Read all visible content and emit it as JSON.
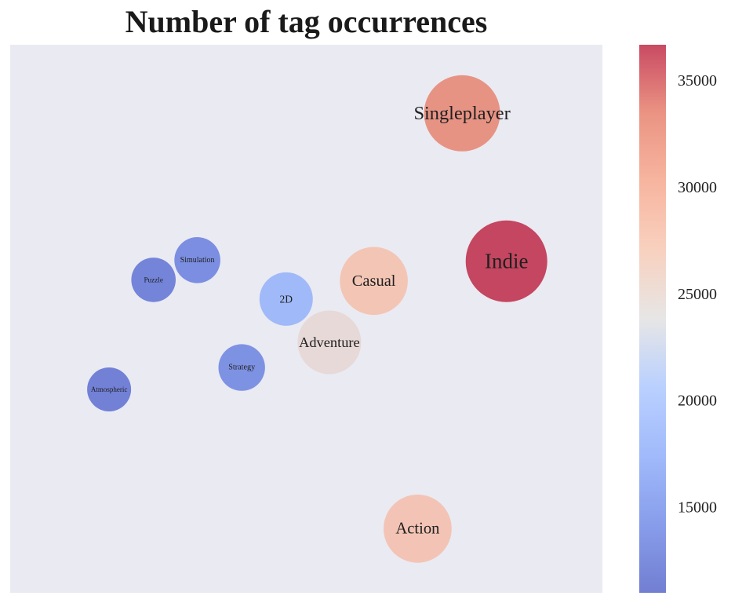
{
  "chart_data": {
    "type": "bubble",
    "title": "Number of tag occurrences",
    "xlabel": "",
    "ylabel": "",
    "axes_visible": false,
    "grid": false,
    "background_color": "#eaeaf2",
    "colormap": "coolwarm",
    "x_range": [
      0,
      1
    ],
    "y_range": [
      0,
      1
    ],
    "tags": [
      {
        "name": "Singleplayer",
        "x": 0.763,
        "y": 0.875,
        "count": 33000
      },
      {
        "name": "Indie",
        "x": 0.838,
        "y": 0.605,
        "count": 36600
      },
      {
        "name": "Casual",
        "x": 0.614,
        "y": 0.569,
        "count": 27700
      },
      {
        "name": "2D",
        "x": 0.466,
        "y": 0.536,
        "count": 18200
      },
      {
        "name": "Adventure",
        "x": 0.539,
        "y": 0.457,
        "count": 24800
      },
      {
        "name": "Simulation",
        "x": 0.316,
        "y": 0.607,
        "count": 13300
      },
      {
        "name": "Puzzle",
        "x": 0.242,
        "y": 0.571,
        "count": 12300
      },
      {
        "name": "Strategy",
        "x": 0.391,
        "y": 0.411,
        "count": 13700
      },
      {
        "name": "Atmospheric",
        "x": 0.167,
        "y": 0.371,
        "count": 12000
      },
      {
        "name": "Action",
        "x": 0.688,
        "y": 0.117,
        "count": 27800
      }
    ],
    "colorbar": {
      "min": 11000,
      "max": 36700,
      "ticks": [
        15000,
        20000,
        25000,
        30000,
        35000
      ],
      "tick_labels": [
        "15000",
        "20000",
        "25000",
        "30000",
        "35000"
      ],
      "placement": "right"
    }
  }
}
